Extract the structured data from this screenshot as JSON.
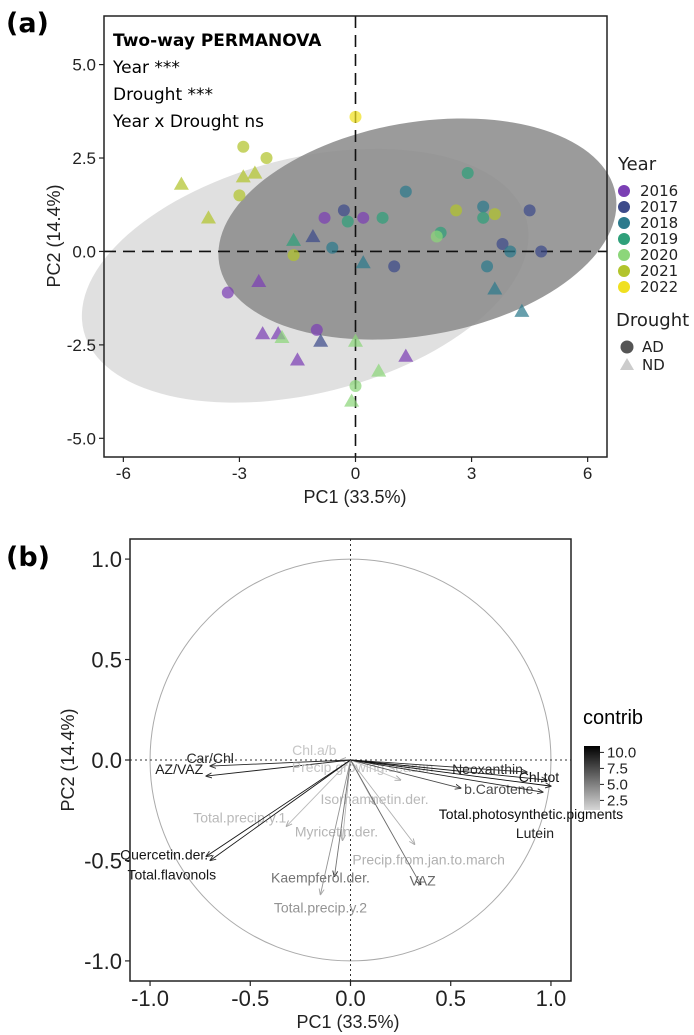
{
  "chart_data": [
    {
      "panel_label": "(a)",
      "type": "scatter",
      "xlabel": "PC1 (33.5%)",
      "ylabel": "PC2 (14.4%)",
      "xlim": [
        -6.5,
        6.5
      ],
      "ylim": [
        -5.5,
        6.3
      ],
      "xticks": [
        -6,
        -3,
        0,
        3,
        6
      ],
      "xtick_labels": [
        "-6",
        "-3",
        "0",
        "3",
        "6"
      ],
      "yticks": [
        -5,
        -2.5,
        0,
        2.5,
        5
      ],
      "ytick_labels": [
        "-5.0",
        "-2.5",
        "0.0",
        "2.5",
        "5.0"
      ],
      "annotation": {
        "title": "Two-way PERMANOVA",
        "lines": [
          "Year ***",
          "Drought ***",
          "Year x Drought ns"
        ]
      },
      "legend_year_title": "Year",
      "legend_years": [
        {
          "label": "2016",
          "color": "#7b3fb4"
        },
        {
          "label": "2017",
          "color": "#3d4b8a"
        },
        {
          "label": "2018",
          "color": "#2c7a8c"
        },
        {
          "label": "2019",
          "color": "#2fa07a"
        },
        {
          "label": "2020",
          "color": "#8cd67a"
        },
        {
          "label": "2021",
          "color": "#b2c42c"
        },
        {
          "label": "2022",
          "color": "#f0e020"
        }
      ],
      "legend_drought_title": "Drought",
      "legend_drought": [
        {
          "label": "AD",
          "shape": "circle",
          "color": "#555555"
        },
        {
          "label": "ND",
          "shape": "triangle",
          "color": "#cccccc"
        }
      ],
      "ellipses": [
        {
          "group": "ND",
          "cx": -1.3,
          "cy": -0.65,
          "rx": 5.9,
          "ry": 3.15,
          "angle_deg": -14,
          "color": "#d5d5d5"
        },
        {
          "group": "AD",
          "cx": 1.6,
          "cy": 0.6,
          "rx": 5.2,
          "ry": 2.85,
          "angle_deg": -10,
          "color": "#8a8a8a"
        }
      ],
      "points": [
        {
          "x": -3.3,
          "y": -1.1,
          "year": "2016",
          "shape": "circle"
        },
        {
          "x": -2.5,
          "y": -0.8,
          "year": "2016",
          "shape": "triangle"
        },
        {
          "x": -2.4,
          "y": -2.2,
          "year": "2016",
          "shape": "triangle"
        },
        {
          "x": -2.0,
          "y": -2.2,
          "year": "2016",
          "shape": "triangle"
        },
        {
          "x": -1.0,
          "y": -2.1,
          "year": "2016",
          "shape": "circle"
        },
        {
          "x": -1.5,
          "y": -2.9,
          "year": "2016",
          "shape": "triangle"
        },
        {
          "x": 1.3,
          "y": -2.8,
          "year": "2016",
          "shape": "triangle"
        },
        {
          "x": -0.8,
          "y": 0.9,
          "year": "2016",
          "shape": "circle"
        },
        {
          "x": 0.2,
          "y": 0.9,
          "year": "2016",
          "shape": "circle"
        },
        {
          "x": 4.5,
          "y": 1.1,
          "year": "2017",
          "shape": "circle"
        },
        {
          "x": 3.8,
          "y": 0.2,
          "year": "2017",
          "shape": "circle"
        },
        {
          "x": 4.8,
          "y": 0.0,
          "year": "2017",
          "shape": "circle"
        },
        {
          "x": -0.9,
          "y": -2.4,
          "year": "2017",
          "shape": "triangle"
        },
        {
          "x": -0.3,
          "y": 1.1,
          "year": "2017",
          "shape": "circle"
        },
        {
          "x": -1.1,
          "y": 0.4,
          "year": "2017",
          "shape": "triangle"
        },
        {
          "x": 1.0,
          "y": -0.4,
          "year": "2017",
          "shape": "circle"
        },
        {
          "x": 3.3,
          "y": 1.2,
          "year": "2018",
          "shape": "circle"
        },
        {
          "x": 4.0,
          "y": 0.0,
          "year": "2018",
          "shape": "circle"
        },
        {
          "x": 3.6,
          "y": -1.0,
          "year": "2018",
          "shape": "triangle"
        },
        {
          "x": 4.3,
          "y": -1.6,
          "year": "2018",
          "shape": "triangle"
        },
        {
          "x": 3.4,
          "y": -0.4,
          "year": "2018",
          "shape": "circle"
        },
        {
          "x": 1.3,
          "y": 1.6,
          "year": "2018",
          "shape": "circle"
        },
        {
          "x": 0.2,
          "y": -0.3,
          "year": "2018",
          "shape": "triangle"
        },
        {
          "x": -0.6,
          "y": 0.1,
          "year": "2018",
          "shape": "circle"
        },
        {
          "x": 2.9,
          "y": 2.1,
          "year": "2019",
          "shape": "circle"
        },
        {
          "x": 3.3,
          "y": 0.9,
          "year": "2019",
          "shape": "circle"
        },
        {
          "x": 0.7,
          "y": 0.9,
          "year": "2019",
          "shape": "circle"
        },
        {
          "x": -1.6,
          "y": 0.3,
          "year": "2019",
          "shape": "triangle"
        },
        {
          "x": -0.2,
          "y": 0.8,
          "year": "2019",
          "shape": "circle"
        },
        {
          "x": 2.2,
          "y": 0.5,
          "year": "2019",
          "shape": "circle"
        },
        {
          "x": 0.0,
          "y": -2.4,
          "year": "2020",
          "shape": "triangle"
        },
        {
          "x": 0.6,
          "y": -3.2,
          "year": "2020",
          "shape": "triangle"
        },
        {
          "x": -0.1,
          "y": -4.0,
          "year": "2020",
          "shape": "triangle"
        },
        {
          "x": 0.0,
          "y": -3.6,
          "year": "2020",
          "shape": "circle"
        },
        {
          "x": -1.9,
          "y": -2.3,
          "year": "2020",
          "shape": "triangle"
        },
        {
          "x": 2.1,
          "y": 0.4,
          "year": "2020",
          "shape": "circle"
        },
        {
          "x": -4.5,
          "y": 1.8,
          "year": "2021",
          "shape": "triangle"
        },
        {
          "x": -3.8,
          "y": 0.9,
          "year": "2021",
          "shape": "triangle"
        },
        {
          "x": -2.9,
          "y": 2.8,
          "year": "2021",
          "shape": "circle"
        },
        {
          "x": -2.9,
          "y": 2.0,
          "year": "2021",
          "shape": "triangle"
        },
        {
          "x": -2.6,
          "y": 2.1,
          "year": "2021",
          "shape": "triangle"
        },
        {
          "x": -2.3,
          "y": 2.5,
          "year": "2021",
          "shape": "circle"
        },
        {
          "x": -3.0,
          "y": 1.5,
          "year": "2021",
          "shape": "circle"
        },
        {
          "x": 2.6,
          "y": 1.1,
          "year": "2021",
          "shape": "circle"
        },
        {
          "x": 3.6,
          "y": 1.0,
          "year": "2021",
          "shape": "circle"
        },
        {
          "x": -1.6,
          "y": -0.1,
          "year": "2021",
          "shape": "circle"
        },
        {
          "x": 0.0,
          "y": 3.6,
          "year": "2022",
          "shape": "circle"
        }
      ]
    },
    {
      "panel_label": "(b)",
      "type": "biplot",
      "xlabel": "PC1 (33.5%)",
      "ylabel": "PC2 (14.4%)",
      "xlim": [
        -1.1,
        1.1
      ],
      "ylim": [
        -1.1,
        1.1
      ],
      "xticks": [
        -1.0,
        -0.5,
        0.0,
        0.5,
        1.0
      ],
      "xtick_labels": [
        "-1.0",
        "-0.5",
        "0.0",
        "0.5",
        "1.0"
      ],
      "yticks": [
        -1.0,
        -0.5,
        0.0,
        0.5,
        1.0
      ],
      "ytick_labels": [
        "-1.0",
        "-0.5",
        "0.0",
        "0.5",
        "1.0"
      ],
      "colorbar_title": "contrib",
      "colorbar_range": [
        1.0,
        11.0
      ],
      "colorbar_tick_values": [
        10.0,
        7.5,
        5.0,
        2.5
      ],
      "colorbar_ticks": [
        "10.0",
        "7.5",
        "5.0",
        "2.5"
      ],
      "vectors": [
        {
          "name": "Chl.a/b",
          "x": -0.05,
          "y": 0.0,
          "contrib": 1.6
        },
        {
          "name": "Car/Chl",
          "x": -0.7,
          "y": -0.03,
          "contrib": 9.0
        },
        {
          "name": "AZ/VAZ",
          "x": -0.72,
          "y": -0.08,
          "contrib": 9.5
        },
        {
          "name": "Precip.growing.season",
          "x": 0.25,
          "y": -0.1,
          "contrib": 1.6
        },
        {
          "name": "Isorhamnetin.der.",
          "x": 0.12,
          "y": -0.22,
          "contrib": 2.2
        },
        {
          "name": "Total.precip.y.1",
          "x": -0.32,
          "y": -0.33,
          "contrib": 2.2
        },
        {
          "name": "Myricetin.der.",
          "x": -0.04,
          "y": -0.4,
          "contrib": 2.4
        },
        {
          "name": "Precip.from.jan.to.march",
          "x": 0.32,
          "y": -0.42,
          "contrib": 2.6
        },
        {
          "name": "Quercetin.der.",
          "x": -0.72,
          "y": -0.48,
          "contrib": 10.0
        },
        {
          "name": "Total.flavonols",
          "x": -0.7,
          "y": -0.5,
          "contrib": 10.0
        },
        {
          "name": "Kaempferol.der.",
          "x": -0.08,
          "y": -0.58,
          "contrib": 5.5
        },
        {
          "name": "Total.precip.y.2",
          "x": -0.15,
          "y": -0.67,
          "contrib": 4.0
        },
        {
          "name": "VAZ",
          "x": 0.35,
          "y": -0.62,
          "contrib": 6.0
        },
        {
          "name": "Neoxanthin",
          "x": 0.88,
          "y": -0.06,
          "contrib": 9.0
        },
        {
          "name": "b.Carotene",
          "x": 0.55,
          "y": -0.14,
          "contrib": 7.5
        },
        {
          "name": "Chl.tot",
          "x": 0.98,
          "y": -0.1,
          "contrib": 10.0
        },
        {
          "name": "Total.photosynthetic.pigments",
          "x": 1.0,
          "y": -0.13,
          "contrib": 10.5
        },
        {
          "name": "Lutein",
          "x": 0.96,
          "y": -0.16,
          "contrib": 9.5
        }
      ]
    }
  ]
}
